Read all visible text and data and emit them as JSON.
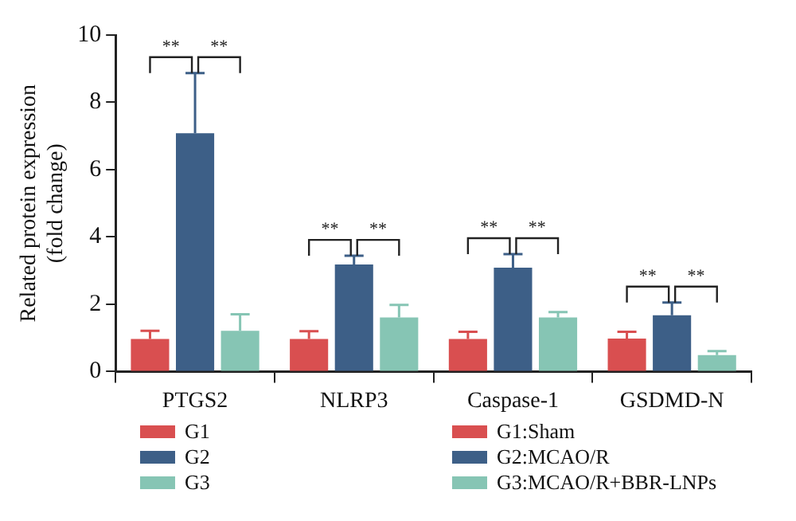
{
  "chart_data": {
    "type": "bar",
    "ylabel": "Related protein expression\n(fold change)",
    "categories": [
      "PTGS2",
      "NLRP3",
      "Caspase-1",
      "GSDMD-N"
    ],
    "series": [
      {
        "name": "G1",
        "color": "#d94f50",
        "values": [
          0.97,
          0.97,
          0.97,
          0.98
        ],
        "errors": [
          [
            0.97,
            1.21
          ],
          [
            0.97,
            1.2
          ],
          [
            0.97,
            1.18
          ],
          [
            0.98,
            1.18
          ]
        ]
      },
      {
        "name": "G2",
        "color": "#3d5f87",
        "values": [
          7.08,
          3.18,
          3.09,
          1.67
        ],
        "errors": [
          [
            7.08,
            8.87
          ],
          [
            3.18,
            3.44
          ],
          [
            3.09,
            3.49
          ],
          [
            1.67,
            2.05
          ]
        ]
      },
      {
        "name": "G3",
        "color": "#86c5b4",
        "values": [
          1.21,
          1.61,
          1.61,
          0.49
        ],
        "errors": [
          [
            1.21,
            1.7
          ],
          [
            1.61,
            1.98
          ],
          [
            1.61,
            1.77
          ],
          [
            0.49,
            0.61
          ]
        ]
      }
    ],
    "ylim": [
      0,
      10
    ],
    "yticks": [
      0,
      2,
      4,
      6,
      8,
      10
    ],
    "grid": false,
    "legend": "bottom",
    "annotations": [
      "**",
      "**",
      "**",
      "**",
      "**",
      "**",
      "**",
      "**",
      "G1:Sham",
      "G2:MCAO/R",
      "G3:MCAO/R+BBR-LNPs"
    ]
  }
}
